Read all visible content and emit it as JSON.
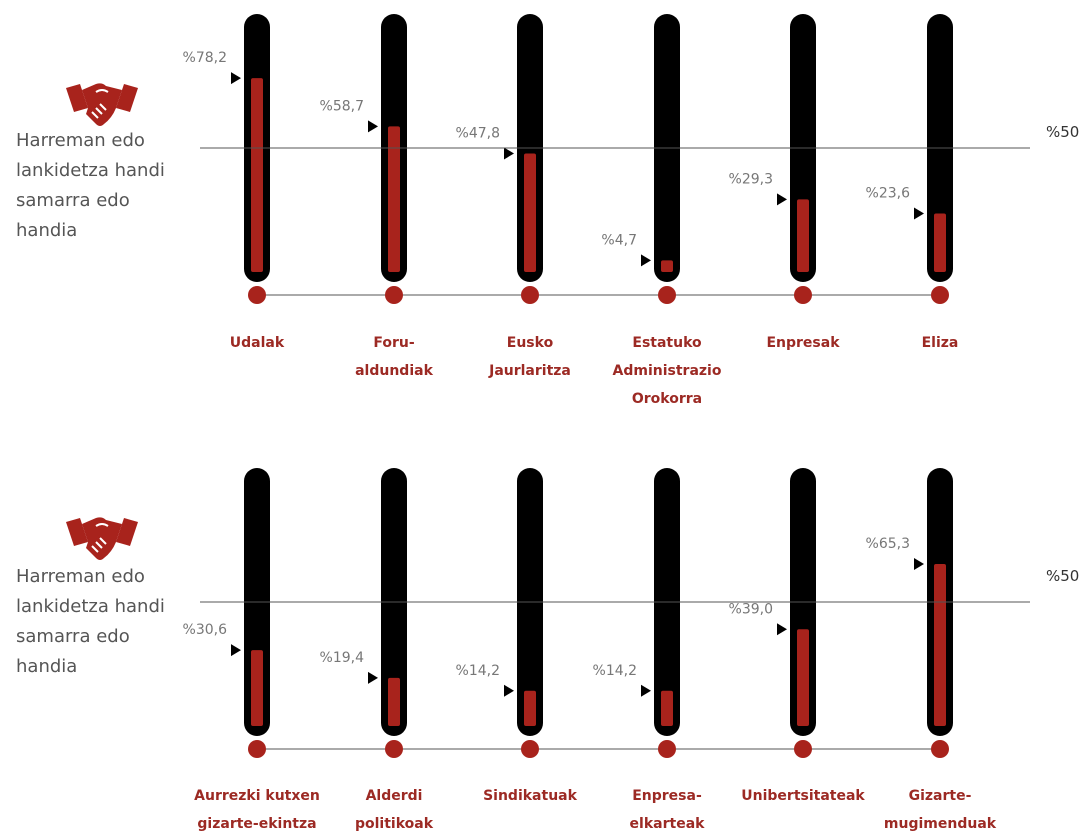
{
  "side_label": "Harreman edo lankidetza handi samarra edo handia",
  "reference_label": "%50",
  "colors": {
    "tube": "#000000",
    "fill": "#a8231c",
    "category": "#9c2a24",
    "pct_text": "#777777",
    "line": "#555555"
  },
  "icon": "handshake-icon",
  "chart_data": [
    {
      "type": "bar",
      "ylim": [
        0,
        100
      ],
      "reference": 50,
      "categories": [
        "Udalak",
        "Foru-\naldundiak",
        "Eusko\nJaurlaritza",
        "Estatuko\nAdministrazio\nOrokorra",
        "Enpresak",
        "Eliza"
      ],
      "values": [
        78.2,
        58.7,
        47.8,
        4.7,
        29.3,
        23.6
      ],
      "value_labels": [
        "%78,2",
        "%58,7",
        "%47,8",
        "%4,7",
        "%29,3",
        "%23,6"
      ]
    },
    {
      "type": "bar",
      "ylim": [
        0,
        100
      ],
      "reference": 50,
      "categories": [
        "Aurrezki kutxen\ngizarte-ekintza",
        "Alderdi\npolitikoak",
        "Sindikatuak",
        "Enpresa-\nelkarteak",
        "Unibertsitateak",
        "Gizarte-\nmugimenduak"
      ],
      "values": [
        30.6,
        19.4,
        14.2,
        14.2,
        39.0,
        65.3
      ],
      "value_labels": [
        "%30,6",
        "%19,4",
        "%14,2",
        "%14,2",
        "%39,0",
        "%65,3"
      ]
    }
  ]
}
